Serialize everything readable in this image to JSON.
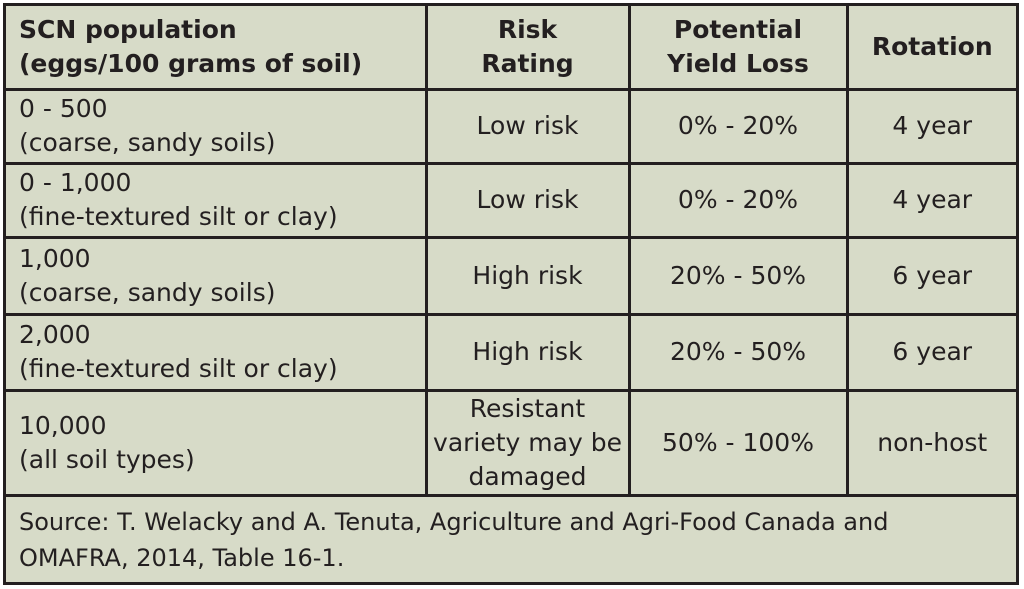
{
  "table": {
    "headers": [
      [
        "SCN population",
        "(eggs/100 grams of soil)"
      ],
      [
        "Risk",
        "Rating"
      ],
      [
        "Potential",
        "Yield Loss"
      ],
      [
        "Rotation"
      ]
    ],
    "rows": [
      {
        "population": [
          "0 - 500",
          "(coarse, sandy soils)"
        ],
        "risk": [
          "Low risk"
        ],
        "yield_loss": "0% - 20%",
        "rotation": "4 year"
      },
      {
        "population": [
          "0 - 1,000",
          "(fine-textured silt or clay)"
        ],
        "risk": [
          "Low risk"
        ],
        "yield_loss": "0% - 20%",
        "rotation": "4 year"
      },
      {
        "population": [
          "1,000",
          "(coarse, sandy soils)"
        ],
        "risk": [
          "High risk"
        ],
        "yield_loss": "20% - 50%",
        "rotation": "6 year"
      },
      {
        "population": [
          "2,000",
          "(fine-textured silt or clay)"
        ],
        "risk": [
          "High risk"
        ],
        "yield_loss": "20% - 50%",
        "rotation": "6 year"
      },
      {
        "population": [
          "10,000",
          "(all soil types)"
        ],
        "risk": [
          "Resistant",
          "variety may be",
          "damaged"
        ],
        "yield_loss": "50% - 100%",
        "rotation": "non-host"
      }
    ],
    "source": [
      "Source: T. Welacky and A. Tenuta, Agriculture and Agri-Food Canada and",
      "OMAFRA, 2014, Table 16-1."
    ]
  }
}
